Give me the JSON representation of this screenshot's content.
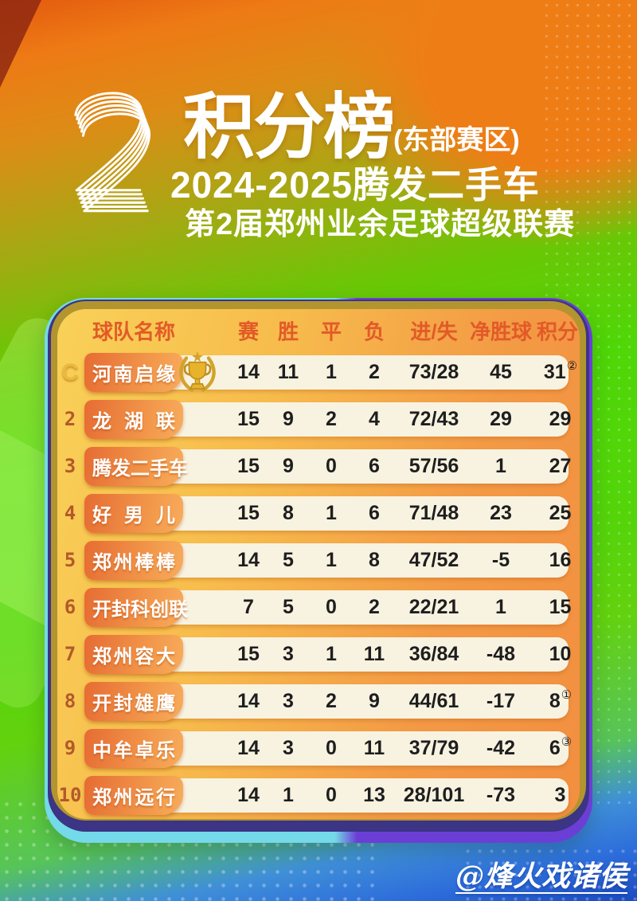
{
  "header": {
    "big_number": "2",
    "title": "积分榜",
    "region": "(东部赛区)",
    "line2": "2024-2025腾发二手车",
    "line3": "第2届郑州业余足球超级联赛"
  },
  "table": {
    "columns": {
      "team": "球队名称",
      "played": "赛",
      "won": "胜",
      "drawn": "平",
      "lost": "负",
      "goals": "进/失",
      "gd": "净胜球",
      "points": "积分"
    },
    "rows": [
      {
        "rank": "C",
        "team": "河南启缘",
        "played": "14",
        "won": "11",
        "drawn": "1",
        "lost": "2",
        "goals": "73/28",
        "gd": "45",
        "points": "31",
        "points_sup": "②"
      },
      {
        "rank": "2",
        "team": "龙湖联",
        "played": "15",
        "won": "9",
        "drawn": "2",
        "lost": "4",
        "goals": "72/43",
        "gd": "29",
        "points": "29",
        "points_sup": ""
      },
      {
        "rank": "3",
        "team": "腾发二手车",
        "played": "15",
        "won": "9",
        "drawn": "0",
        "lost": "6",
        "goals": "57/56",
        "gd": "1",
        "points": "27",
        "points_sup": ""
      },
      {
        "rank": "4",
        "team": "好男儿",
        "played": "15",
        "won": "8",
        "drawn": "1",
        "lost": "6",
        "goals": "71/48",
        "gd": "23",
        "points": "25",
        "points_sup": ""
      },
      {
        "rank": "5",
        "team": "郑州棒棒",
        "played": "14",
        "won": "5",
        "drawn": "1",
        "lost": "8",
        "goals": "47/52",
        "gd": "-5",
        "points": "16",
        "points_sup": ""
      },
      {
        "rank": "6",
        "team": "开封科创联",
        "played": "7",
        "won": "5",
        "drawn": "0",
        "lost": "2",
        "goals": "22/21",
        "gd": "1",
        "points": "15",
        "points_sup": ""
      },
      {
        "rank": "7",
        "team": "郑州容大",
        "played": "15",
        "won": "3",
        "drawn": "1",
        "lost": "11",
        "goals": "36/84",
        "gd": "-48",
        "points": "10",
        "points_sup": ""
      },
      {
        "rank": "8",
        "team": "开封雄鹰",
        "played": "14",
        "won": "3",
        "drawn": "2",
        "lost": "9",
        "goals": "44/61",
        "gd": "-17",
        "points": "8",
        "points_sup": "①"
      },
      {
        "rank": "9",
        "team": "中牟卓乐",
        "played": "14",
        "won": "3",
        "drawn": "0",
        "lost": "11",
        "goals": "37/79",
        "gd": "-42",
        "points": "6",
        "points_sup": "③"
      },
      {
        "rank": "10",
        "team": "郑州远行",
        "played": "14",
        "won": "1",
        "drawn": "0",
        "lost": "13",
        "goals": "28/101",
        "gd": "-73",
        "points": "3",
        "points_sup": ""
      }
    ]
  },
  "footer": {
    "watermark": "@烽火戏诸侯"
  },
  "colors": {
    "green_bg": "#4fd707",
    "orange_bg": "#ee7a15",
    "blue_bg": "#2d6ddb",
    "card_orange": "#f39a45",
    "card_gold_rim": "#b2952f",
    "card_navy_rim": "#3c3484",
    "rim_cyan": "#74d9e9",
    "rim_purple": "#6b3fd6",
    "row_cream": "#f8f3e1",
    "header_text": "#e25a28",
    "pill_orange": "#e66c33",
    "rank_brown": "#b3592a",
    "rank_gold": "#ecb93f"
  }
}
